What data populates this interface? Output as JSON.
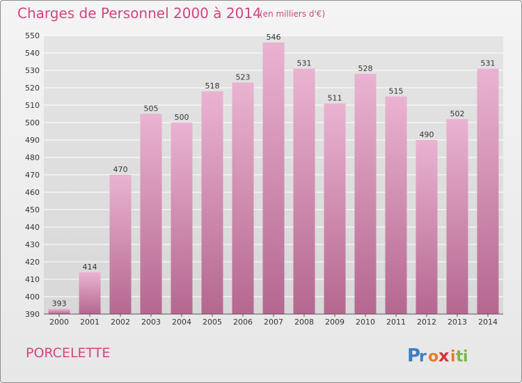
{
  "title": "Charges de Personnel 2000 à 2014",
  "subtitle": "(en milliers d'€)",
  "commune": "PORCELETTE",
  "logo": {
    "text": "Proxiti",
    "letters": [
      "P",
      "r",
      "o",
      "x",
      "i",
      "t",
      "i"
    ],
    "colors": [
      "#3a7fc2",
      "#3a7fc2",
      "#e87b2a",
      "#d6323b",
      "#e87b2a",
      "#7ab648",
      "#7ab648"
    ]
  },
  "colors": {
    "accent": "#d0457f",
    "bar_light": "#eab3d1",
    "bar_dark": "#b5678f",
    "grid": "#ffffff"
  },
  "chart_data": {
    "type": "bar",
    "categories": [
      "2000",
      "2001",
      "2002",
      "2003",
      "2004",
      "2005",
      "2006",
      "2007",
      "2008",
      "2009",
      "2010",
      "2011",
      "2012",
      "2013",
      "2014"
    ],
    "values": [
      393,
      414,
      470,
      505,
      500,
      518,
      523,
      546,
      531,
      511,
      528,
      515,
      490,
      502,
      531
    ],
    "ylim": [
      390,
      550
    ],
    "yticks": [
      390,
      400,
      410,
      420,
      430,
      440,
      450,
      460,
      470,
      480,
      490,
      500,
      510,
      520,
      530,
      540,
      550
    ],
    "grid": true,
    "data_labels": true
  }
}
